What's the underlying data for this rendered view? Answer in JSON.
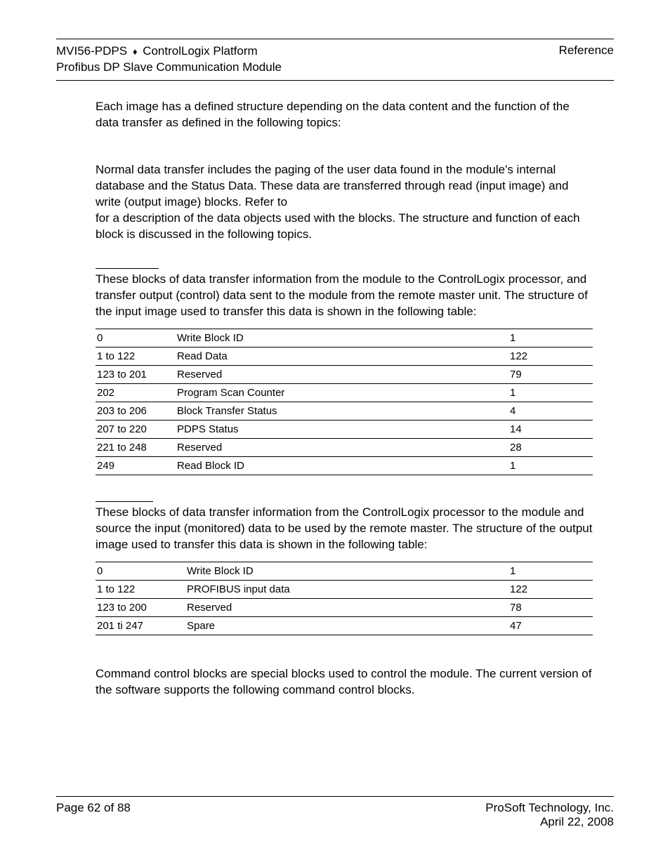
{
  "header": {
    "left_line1_a": "MVI56-PDPS",
    "left_line1_b": "ControlLogix Platform",
    "left_line2": "Profibus DP Slave Communication Module",
    "right": "Reference"
  },
  "intro_para": "Each image has a defined structure depending on the data content and the function of the data transfer as defined in the following topics:",
  "normal_para": "Normal data transfer includes the paging of the user data found in the module's internal database and the Status Data. These data are transferred through read (input image) and write (output image) blocks. Refer to\nfor a description of the data objects used with the blocks. The structure and function of each block is discussed in the following topics.",
  "read_block_para": "These blocks of data transfer information from the module to the ControlLogix processor, and transfer output (control) data sent to the module from the remote master unit. The structure of the input image used to transfer this data is shown in the following table:",
  "read_table": {
    "rows": [
      {
        "offset": "0",
        "desc": "Write Block ID",
        "len": "1"
      },
      {
        "offset": "1 to 122",
        "desc": "Read Data",
        "len": "122"
      },
      {
        "offset": "123 to 201",
        "desc": "Reserved",
        "len": "79"
      },
      {
        "offset": "202",
        "desc": "Program Scan Counter",
        "len": "1"
      },
      {
        "offset": "203 to 206",
        "desc": "Block Transfer Status",
        "len": "4"
      },
      {
        "offset": "207 to 220",
        "desc": "PDPS Status",
        "len": "14"
      },
      {
        "offset": "221 to 248",
        "desc": "Reserved",
        "len": "28"
      },
      {
        "offset": "249",
        "desc": "Read Block ID",
        "len": "1"
      }
    ]
  },
  "write_block_para": "These blocks of data transfer information from the ControlLogix processor to the module and source the input (monitored) data to be used by the remote master. The structure of the output image used to transfer this data is shown in the following table:",
  "write_table": {
    "rows": [
      {
        "offset": "0",
        "desc": "Write Block ID",
        "len": "1"
      },
      {
        "offset": "1 to 122",
        "desc": "PROFIBUS input data",
        "len": "122"
      },
      {
        "offset": "123 to 200",
        "desc": "Reserved",
        "len": "78"
      },
      {
        "offset": "201 ti 247",
        "desc": "Spare",
        "len": "47"
      }
    ]
  },
  "command_para": "Command control blocks are special blocks used to control the module. The current version of the software supports the following command control blocks.",
  "footer": {
    "left": "Page 62 of 88",
    "right_line1": "ProSoft Technology, Inc.",
    "right_line2": "April 22, 2008"
  }
}
